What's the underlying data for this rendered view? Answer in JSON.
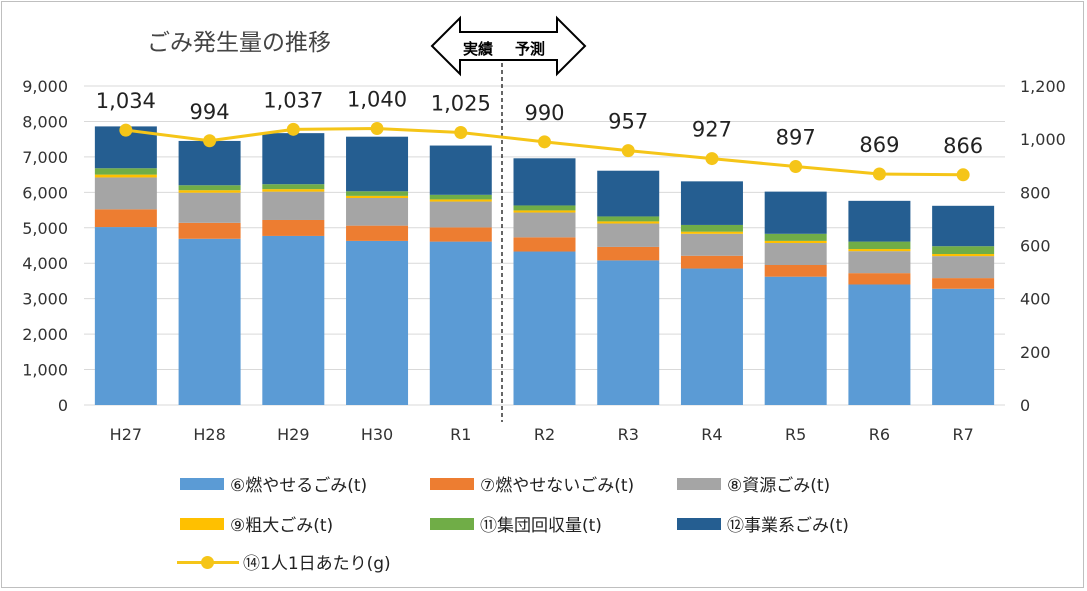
{
  "chart_data": {
    "type": "bar",
    "stacked": true,
    "title": "ごみ発生量の推移",
    "categories": [
      "H27",
      "H28",
      "H29",
      "H30",
      "R1",
      "R2",
      "R3",
      "R4",
      "R5",
      "R6",
      "R7"
    ],
    "series": [
      {
        "name": "⑥燃やせるごみ(t)",
        "color": "#5b9bd5",
        "values": [
          5020,
          4690,
          4770,
          4630,
          4610,
          4330,
          4080,
          3850,
          3620,
          3400,
          3280
        ]
      },
      {
        "name": "⑦燃やせないごみ(t)",
        "color": "#ed7d31",
        "values": [
          500,
          450,
          450,
          430,
          400,
          400,
          380,
          360,
          330,
          320,
          300
        ]
      },
      {
        "name": "⑧資源ごみ(t)",
        "color": "#a5a5a5",
        "values": [
          900,
          850,
          800,
          780,
          730,
          700,
          660,
          620,
          620,
          620,
          620
        ]
      },
      {
        "name": "⑨粗大ごみ(t)",
        "color": "#ffc000",
        "values": [
          80,
          70,
          70,
          60,
          60,
          60,
          60,
          60,
          60,
          60,
          60
        ]
      },
      {
        "name": "⑪集団回収量(t)",
        "color": "#70ad47",
        "values": [
          180,
          140,
          140,
          130,
          130,
          140,
          140,
          190,
          200,
          210,
          220
        ]
      },
      {
        "name": "⑫事業系ごみ(t)",
        "color": "#255e91",
        "values": [
          1180,
          1250,
          1440,
          1540,
          1390,
          1330,
          1290,
          1230,
          1190,
          1150,
          1140
        ]
      }
    ],
    "line_series": {
      "name": "⑭1人1日あたり(g)",
      "color": "#f5c518",
      "values": [
        1034,
        994,
        1037,
        1040,
        1025,
        990,
        957,
        927,
        897,
        869,
        866
      ]
    },
    "data_labels": [
      "1,034",
      "994",
      "1,037",
      "1,040",
      "1,025",
      "990",
      "957",
      "927",
      "897",
      "869",
      "866"
    ],
    "y_left": {
      "min": 0,
      "max": 9000,
      "step": 1000,
      "ticks": [
        "0",
        "1,000",
        "2,000",
        "3,000",
        "4,000",
        "5,000",
        "6,000",
        "7,000",
        "8,000",
        "9,000"
      ]
    },
    "y_right": {
      "min": 0,
      "max": 1200,
      "step": 200,
      "ticks": [
        "0",
        "200",
        "400",
        "600",
        "800",
        "1,000",
        "1,200"
      ]
    },
    "annotation": {
      "left": "実績",
      "right": "予測"
    },
    "legend_position": "bottom"
  }
}
